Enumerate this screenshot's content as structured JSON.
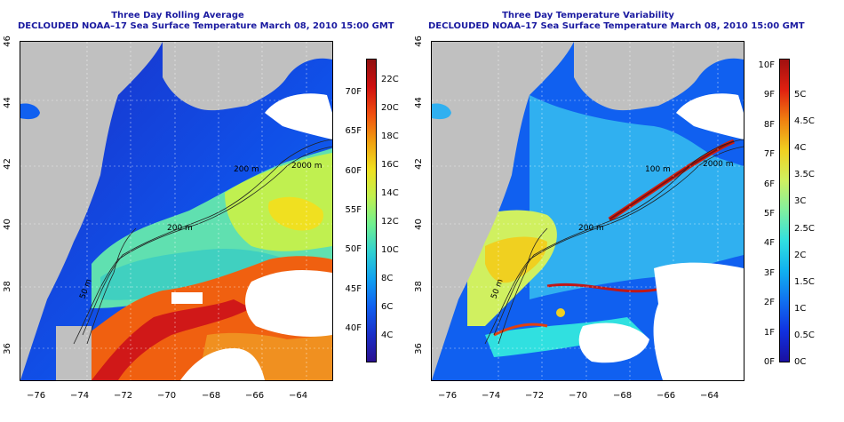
{
  "left_panel": {
    "title": "Three Day Rolling Average",
    "subtitle": "DECLOUDED NOAA–17 Sea Surface Temperature March 08, 2010 15:00 GMT",
    "colorbar": {
      "celsius_labels": [
        "4C",
        "6C",
        "8C",
        "10C",
        "12C",
        "14C",
        "16C",
        "18C",
        "20C",
        "22C"
      ],
      "fahrenheit_labels": [
        "40F",
        "45F",
        "50F",
        "55F",
        "60F",
        "65F",
        "70F"
      ],
      "colors": [
        "#2a1090",
        "#1a30c8",
        "#1060f0",
        "#10a0f0",
        "#30d0d0",
        "#70f090",
        "#c0f050",
        "#f0e020",
        "#f0a010",
        "#f05010",
        "#d01010",
        "#901010"
      ]
    },
    "isobath_labels": [
      "2000 m",
      "200 m",
      "200 m",
      "50 m"
    ]
  },
  "right_panel": {
    "title": "Three Day Temperature Variability",
    "subtitle": "DECLOUDED NOAA–17 Sea Surface Temperature March 08, 2010 15:00 GMT",
    "colorbar": {
      "celsius_labels": [
        "0C",
        "0.5C",
        "1C",
        "1.5C",
        "2C",
        "2.5C",
        "3C",
        "3.5C",
        "4C",
        "4.5C",
        "5C"
      ],
      "fahrenheit_labels": [
        "0F",
        "1F",
        "2F",
        "3F",
        "4F",
        "5F",
        "6F",
        "7F",
        "8F",
        "9F",
        "10F"
      ],
      "colors": [
        "#1a10a0",
        "#1030e0",
        "#1070f0",
        "#10b0f0",
        "#30e0e0",
        "#80f0a0",
        "#d0f060",
        "#f0d020",
        "#f08010",
        "#e02010",
        "#a01010"
      ]
    },
    "isobath_labels": [
      "2000 m",
      "100 m",
      "200 m",
      "50 m"
    ]
  },
  "axes": {
    "x_ticks": [
      "−76",
      "−74",
      "−72",
      "−70",
      "−68",
      "−66",
      "−64"
    ],
    "y_ticks": [
      "36",
      "38",
      "40",
      "42",
      "44",
      "46"
    ]
  }
}
